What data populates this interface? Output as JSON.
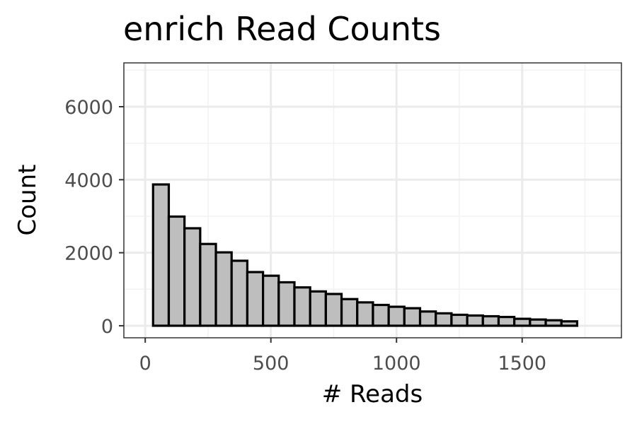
{
  "chart_data": {
    "type": "bar",
    "title": "enrich Read Counts",
    "xlabel": "# Reads",
    "ylabel": "Count",
    "xlim": [
      -85,
      1895
    ],
    "ylim": [
      -330,
      7200
    ],
    "x_ticks": [
      0,
      500,
      1000,
      1500
    ],
    "y_ticks": [
      0,
      2000,
      4000,
      6000
    ],
    "x_tick_labels": [
      "0",
      "500",
      "1000",
      "1500"
    ],
    "y_tick_labels": [
      "0",
      "2000",
      "4000",
      "6000"
    ],
    "bin_width": 62.5,
    "x_start": 31.25,
    "values": [
      3870,
      2990,
      2670,
      2240,
      2010,
      1780,
      1470,
      1370,
      1190,
      1050,
      940,
      870,
      730,
      640,
      570,
      520,
      480,
      390,
      340,
      300,
      280,
      260,
      240,
      190,
      170,
      150,
      120
    ],
    "fill_color": "#bebebe",
    "edge_color": "#000000",
    "grid": true,
    "legend": "none"
  }
}
